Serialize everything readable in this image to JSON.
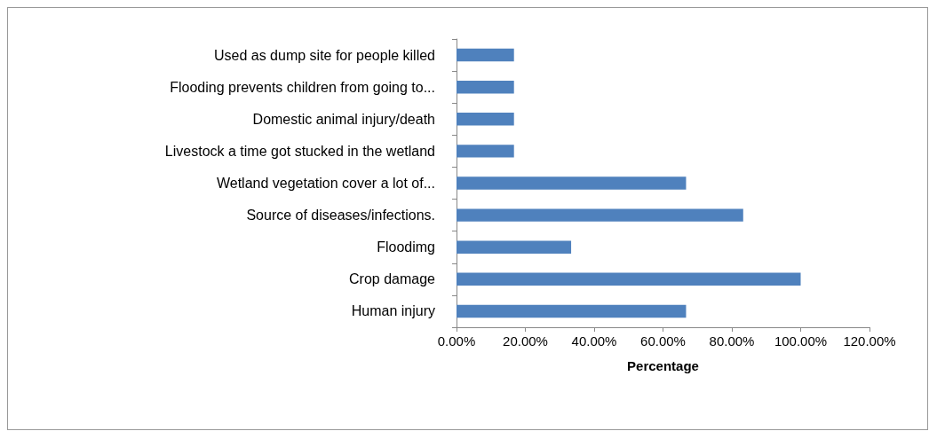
{
  "chart_data": {
    "type": "bar",
    "orientation": "horizontal",
    "xlabel": "Percentage",
    "categories": [
      "Used as dump site for people killed",
      "Flooding prevents children from going to...",
      "Domestic animal injury/death",
      "Livestock a time got stucked in the wetland",
      "Wetland vegetation cover a lot of...",
      "Source of diseases/infections.",
      "Floodimg",
      "Crop damage",
      "Human injury"
    ],
    "values": [
      16.7,
      16.7,
      16.7,
      16.7,
      66.7,
      83.3,
      33.3,
      100,
      66.7
    ],
    "color": "#4f81bd",
    "xlim": [
      0,
      120
    ],
    "xticks": [
      {
        "value": 0,
        "label": "0.00%"
      },
      {
        "value": 20,
        "label": "20.00%"
      },
      {
        "value": 40,
        "label": "40.00%"
      },
      {
        "value": 60,
        "label": "60.00%"
      },
      {
        "value": 80,
        "label": "80.00%"
      },
      {
        "value": 100,
        "label": "100.00%"
      },
      {
        "value": 120,
        "label": "120.00%"
      }
    ],
    "grid": false
  }
}
